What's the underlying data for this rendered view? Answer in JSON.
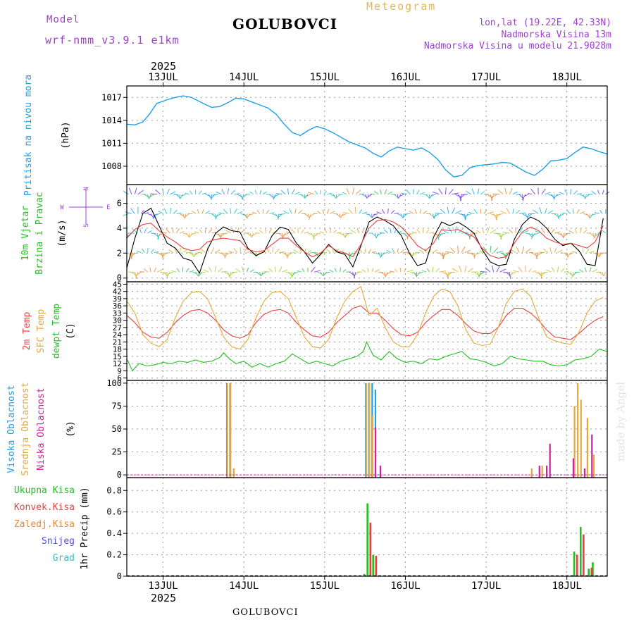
{
  "header": {
    "model_label": "Model",
    "model_name": "wrf-nmm_v3.9.1 e1km",
    "station": "GOLUBOVCI",
    "product": "Meteogram",
    "lonlat": "lon,lat (19.22E, 42.33N)",
    "elevation": "Nadmorska Visina 13m",
    "model_elevation": "Nadmorska Visina u modelu 21.9028m",
    "year": "2025",
    "footer_station": "GOLUBOVCI",
    "watermark": "made by Angel",
    "colors": {
      "title": "#000000",
      "meteogram": "#e6b84a",
      "meta": "#a040d0"
    }
  },
  "x_axis": {
    "days": [
      "13JUL",
      "14JUL",
      "15JUL",
      "16JUL",
      "17JUL",
      "18JUL"
    ],
    "range_days": [
      12.55,
      18.5
    ]
  },
  "chart_data": [
    {
      "type": "line",
      "id": "pressure",
      "ylabel_lines": [
        "Pritisak na nivou mora"
      ],
      "unit": "(hPa)",
      "ylim": [
        1005.6,
        1018.5
      ],
      "yticks": [
        1008,
        1011,
        1014,
        1017
      ],
      "series": [
        {
          "color": "#1ea0e8",
          "x": [
            12.55,
            12.65,
            12.75,
            12.83,
            12.92,
            13.05,
            13.15,
            13.25,
            13.35,
            13.5,
            13.6,
            13.7,
            13.8,
            13.9,
            14.0,
            14.1,
            14.2,
            14.3,
            14.4,
            14.5,
            14.6,
            14.7,
            14.8,
            14.9,
            15.0,
            15.1,
            15.2,
            15.3,
            15.4,
            15.5,
            15.6,
            15.7,
            15.8,
            15.9,
            16.0,
            16.1,
            16.2,
            16.3,
            16.4,
            16.5,
            16.6,
            16.7,
            16.8,
            16.9,
            17.0,
            17.1,
            17.2,
            17.3,
            17.4,
            17.5,
            17.6,
            17.7,
            17.8,
            17.9,
            18.0,
            18.1,
            18.2,
            18.3,
            18.4,
            18.5
          ],
          "y": [
            1013.5,
            1013.4,
            1013.8,
            1014.8,
            1016.2,
            1016.7,
            1017.0,
            1017.2,
            1017.0,
            1016.2,
            1015.7,
            1015.8,
            1016.3,
            1016.9,
            1016.8,
            1016.4,
            1016.0,
            1015.6,
            1014.8,
            1013.5,
            1012.4,
            1012.0,
            1012.7,
            1013.2,
            1012.9,
            1012.4,
            1011.8,
            1011.2,
            1010.8,
            1010.4,
            1009.7,
            1009.2,
            1010.0,
            1010.5,
            1010.3,
            1010.1,
            1010.4,
            1009.8,
            1008.9,
            1007.5,
            1006.6,
            1006.8,
            1007.8,
            1008.1,
            1008.2,
            1008.3,
            1008.5,
            1008.4,
            1007.8,
            1007.2,
            1006.8,
            1007.6,
            1008.7,
            1008.8,
            1009.0,
            1009.8,
            1010.5,
            1010.3,
            1009.9,
            1009.6
          ]
        }
      ]
    },
    {
      "type": "line",
      "id": "wind",
      "ylabel_lines": [
        "10m Vjetar",
        "Brzina i Pravac"
      ],
      "unit": "(m/s)",
      "ylim": [
        -0.3,
        7.5
      ],
      "yticks": [
        0,
        2,
        4,
        6
      ],
      "compass": {
        "n": "N",
        "s": "S",
        "e": "E",
        "w": "W"
      },
      "series": [
        {
          "color": "#000000",
          "x": [
            12.55,
            12.65,
            12.75,
            12.85,
            12.95,
            13.05,
            13.15,
            13.25,
            13.35,
            13.45,
            13.55,
            13.65,
            13.75,
            13.85,
            13.95,
            14.05,
            14.15,
            14.25,
            14.35,
            14.45,
            14.55,
            14.65,
            14.75,
            14.85,
            14.95,
            15.05,
            15.15,
            15.25,
            15.35,
            15.45,
            15.55,
            15.65,
            15.75,
            15.85,
            15.95,
            16.05,
            16.15,
            16.25,
            16.35,
            16.45,
            16.55,
            16.65,
            16.75,
            16.85,
            16.95,
            17.05,
            17.15,
            17.25,
            17.35,
            17.45,
            17.55,
            17.65,
            17.75,
            17.85,
            17.95,
            18.05,
            18.15,
            18.25,
            18.35,
            18.45
          ],
          "y": [
            0.8,
            3.2,
            5.2,
            5.6,
            4.2,
            2.8,
            2.4,
            1.6,
            1.4,
            0.4,
            2.3,
            3.6,
            4.1,
            3.8,
            3.7,
            2.4,
            1.8,
            2.1,
            3.4,
            4.1,
            3.9,
            2.8,
            2.1,
            1.2,
            1.9,
            2.7,
            2.1,
            1.9,
            0.9,
            2.6,
            4.5,
            4.9,
            4.6,
            4.2,
            3.4,
            2.0,
            1.0,
            1.2,
            3.3,
            4.5,
            4.2,
            4.5,
            4.1,
            3.6,
            2.3,
            1.3,
            1.0,
            1.1,
            3.1,
            4.3,
            4.9,
            4.6,
            4.0,
            3.1,
            2.6,
            2.8,
            2.2,
            1.1,
            1.0,
            4.8
          ]
        },
        {
          "color": "#e84040",
          "x": [
            12.55,
            12.65,
            12.75,
            12.85,
            12.95,
            13.05,
            13.15,
            13.25,
            13.35,
            13.45,
            13.55,
            13.65,
            13.75,
            13.85,
            13.95,
            14.05,
            14.15,
            14.25,
            14.35,
            14.45,
            14.55,
            14.65,
            14.75,
            14.85,
            14.95,
            15.05,
            15.15,
            15.25,
            15.35,
            15.45,
            15.55,
            15.65,
            15.75,
            15.85,
            15.95,
            16.05,
            16.15,
            16.25,
            16.35,
            16.45,
            16.55,
            16.65,
            16.75,
            16.85,
            16.95,
            17.05,
            17.15,
            17.25,
            17.35,
            17.45,
            17.55,
            17.65,
            17.75,
            17.85,
            17.95,
            18.05,
            18.15,
            18.25,
            18.35,
            18.45
          ],
          "y": [
            3.2,
            3.9,
            4.3,
            4.4,
            3.8,
            3.3,
            2.9,
            2.4,
            2.2,
            2.3,
            2.9,
            3.1,
            3.2,
            3.1,
            3.0,
            2.3,
            2.1,
            2.2,
            2.7,
            3.2,
            3.2,
            2.6,
            2.1,
            1.7,
            2.0,
            2.6,
            2.2,
            2.0,
            1.7,
            2.7,
            4.0,
            4.6,
            4.7,
            4.5,
            4.1,
            3.4,
            2.6,
            2.2,
            2.8,
            3.9,
            3.8,
            3.9,
            3.6,
            3.3,
            2.4,
            1.8,
            1.6,
            1.7,
            2.8,
            3.7,
            4.1,
            3.8,
            3.2,
            2.9,
            2.7,
            2.8,
            2.6,
            2.4,
            2.9,
            4.2
          ]
        }
      ]
    },
    {
      "type": "line",
      "id": "temperature",
      "ylabel_lines": [
        "2m Temp",
        "SFC Temp",
        "dewpt Temp"
      ],
      "ylabel_colors": [
        "#e84040",
        "#e6a83a",
        "#20c020"
      ],
      "unit": "(C)",
      "ylim": [
        5,
        46
      ],
      "yticks": [
        6,
        9,
        12,
        15,
        18,
        21,
        24,
        27,
        30,
        33,
        36,
        39,
        42,
        45
      ],
      "series": [
        {
          "color": "#e84040",
          "x": [
            12.55,
            12.65,
            12.75,
            12.85,
            12.95,
            13.05,
            13.15,
            13.25,
            13.35,
            13.45,
            13.55,
            13.65,
            13.75,
            13.85,
            13.95,
            14.05,
            14.15,
            14.25,
            14.35,
            14.45,
            14.55,
            14.65,
            14.75,
            14.85,
            14.95,
            15.05,
            15.15,
            15.25,
            15.35,
            15.45,
            15.55,
            15.65,
            15.75,
            15.85,
            15.95,
            16.05,
            16.15,
            16.25,
            16.35,
            16.45,
            16.55,
            16.65,
            16.75,
            16.85,
            16.95,
            17.05,
            17.15,
            17.25,
            17.35,
            17.45,
            17.55,
            17.65,
            17.75,
            17.85,
            17.95,
            18.05,
            18.15,
            18.25,
            18.35,
            18.45
          ],
          "y": [
            32,
            29,
            25,
            23,
            22.5,
            25,
            29,
            32,
            34,
            34.5,
            33,
            30,
            26,
            23.5,
            22.5,
            24,
            29,
            32.5,
            34,
            34.5,
            33,
            29,
            26,
            23.5,
            23,
            25,
            29,
            32,
            35,
            36,
            33,
            33,
            30,
            26.5,
            24,
            23.5,
            25,
            29,
            32,
            34.5,
            34.5,
            32,
            28.5,
            25.5,
            24.5,
            24.5,
            27,
            32,
            35,
            35,
            33,
            30,
            26,
            23,
            22.5,
            22,
            24.5,
            27.5,
            30,
            31.5
          ]
        },
        {
          "color": "#e6a83a",
          "x": [
            12.55,
            12.65,
            12.75,
            12.85,
            12.95,
            13.05,
            13.15,
            13.25,
            13.35,
            13.45,
            13.55,
            13.65,
            13.75,
            13.85,
            13.95,
            14.05,
            14.15,
            14.25,
            14.35,
            14.45,
            14.55,
            14.65,
            14.75,
            14.85,
            14.95,
            15.05,
            15.15,
            15.25,
            15.35,
            15.45,
            15.55,
            15.65,
            15.75,
            15.85,
            15.95,
            16.05,
            16.15,
            16.25,
            16.35,
            16.45,
            16.55,
            16.65,
            16.75,
            16.85,
            16.95,
            17.05,
            17.15,
            17.25,
            17.35,
            17.45,
            17.55,
            17.65,
            17.75,
            17.85,
            17.95,
            18.05,
            18.15,
            18.25,
            18.35,
            18.45
          ],
          "y": [
            38,
            33,
            24,
            20.5,
            19,
            22,
            31,
            38,
            41.5,
            42,
            39,
            31,
            23,
            19,
            18,
            22,
            31,
            38,
            41.5,
            42,
            39,
            31,
            23,
            19,
            18.5,
            22,
            31,
            38,
            42,
            44,
            32,
            35,
            27,
            21,
            19,
            19,
            24,
            33,
            40,
            43,
            42,
            36,
            26,
            20.5,
            19.5,
            20,
            27,
            37,
            42,
            43,
            40,
            31,
            23,
            21.5,
            20.5,
            20,
            25,
            33,
            38,
            39.5
          ]
        },
        {
          "color": "#20c020",
          "x": [
            12.55,
            12.62,
            12.7,
            12.8,
            12.9,
            13.0,
            13.1,
            13.2,
            13.3,
            13.4,
            13.5,
            13.6,
            13.7,
            13.75,
            13.82,
            13.9,
            14.0,
            14.1,
            14.2,
            14.3,
            14.4,
            14.5,
            14.6,
            14.7,
            14.8,
            14.9,
            15.0,
            15.1,
            15.2,
            15.3,
            15.4,
            15.48,
            15.52,
            15.6,
            15.7,
            15.8,
            15.9,
            16.0,
            16.1,
            16.2,
            16.3,
            16.4,
            16.5,
            16.6,
            16.7,
            16.8,
            16.9,
            17.0,
            17.1,
            17.2,
            17.3,
            17.4,
            17.5,
            17.6,
            17.7,
            17.8,
            17.9,
            18.0,
            18.1,
            18.2,
            18.3,
            18.4,
            18.5
          ],
          "y": [
            14,
            9,
            12,
            11,
            11.5,
            12.5,
            12,
            13,
            12.5,
            13.5,
            12.5,
            13,
            14.5,
            16.5,
            14,
            12,
            13,
            10.5,
            12,
            10.5,
            12,
            13,
            16,
            14,
            12,
            13,
            12,
            11,
            13,
            14,
            15,
            17,
            21,
            15.5,
            13.5,
            17,
            14,
            12.5,
            13,
            12,
            14,
            13.5,
            15,
            16,
            17,
            14,
            13.5,
            12.5,
            11,
            12,
            15,
            14,
            13.5,
            13,
            13,
            11.5,
            11,
            11.5,
            13.5,
            14,
            15,
            18,
            17
          ]
        }
      ]
    },
    {
      "type": "bar",
      "id": "clouds",
      "ylabel_lines": [
        "Visoka Oblacnost",
        "Srednja Oblacnost",
        "Niska Oblacnost"
      ],
      "ylabel_colors": [
        "#1ea0e8",
        "#e6a83a",
        "#d020a0"
      ],
      "unit": "(%)",
      "ylim": [
        -3,
        103
      ],
      "yticks": [
        0,
        25,
        50,
        75,
        100
      ],
      "series": [
        {
          "name": "Visoka Oblacnost",
          "color": "#1ea0e8",
          "x": [
            13.79,
            13.83,
            15.51,
            15.55,
            15.59,
            15.63
          ],
          "y": [
            100,
            100,
            100,
            100,
            100,
            93
          ]
        },
        {
          "name": "Srednja Oblacnost",
          "color": "#e6a83a",
          "x": [
            13.78,
            13.82,
            13.86,
            15.5,
            15.54,
            15.58,
            17.55,
            17.68,
            18.08,
            18.12,
            18.16,
            18.24,
            18.32
          ],
          "y": [
            100,
            100,
            7,
            100,
            100,
            65,
            7,
            10,
            75,
            100,
            82,
            62,
            22
          ]
        },
        {
          "name": "Niska Oblacnost",
          "color": "#d020a0",
          "x": [
            15.6,
            15.66,
            17.63,
            17.72,
            17.76,
            18.05,
            18.19,
            18.28
          ],
          "y": [
            52,
            10,
            10,
            10,
            34,
            18,
            7,
            44
          ]
        }
      ]
    },
    {
      "type": "bar",
      "id": "precip",
      "ylabel_lines": [
        "1hr Precip (mm)"
      ],
      "unit": "",
      "ylim": [
        0,
        0.92
      ],
      "yticks": [
        0,
        0.2,
        0.4,
        0.6,
        0.8
      ],
      "legend": [
        {
          "label": "Ukupna Kisa",
          "color": "#20c020"
        },
        {
          "label": "Konvek.Kisa",
          "color": "#e84040"
        },
        {
          "label": "Zaledj.Kisa",
          "color": "#e88a30"
        },
        {
          "label": "Snijeg",
          "color": "#5050e0"
        },
        {
          "label": "Grad",
          "color": "#30c0c0"
        }
      ],
      "series": [
        {
          "name": "Ukupna Kisa",
          "color": "#20c020",
          "x": [
            15.49,
            15.53,
            15.6,
            18.09,
            18.17,
            18.27,
            18.32
          ],
          "y": [
            0.02,
            0.68,
            0.2,
            0.23,
            0.46,
            0.07,
            0.13
          ]
        },
        {
          "name": "Konvek.Kisa",
          "color": "#e84040",
          "x": [
            15.55,
            15.62,
            18.11,
            18.19,
            18.29
          ],
          "y": [
            0.5,
            0.19,
            0.2,
            0.39,
            0.08
          ]
        }
      ]
    }
  ]
}
